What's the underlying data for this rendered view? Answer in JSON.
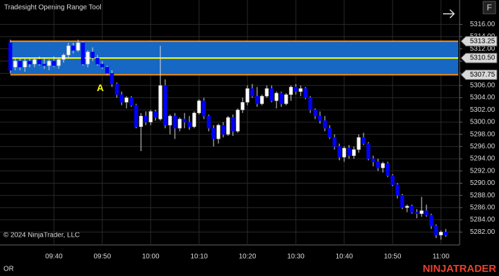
{
  "chart_data": {
    "type": "candlestick",
    "title": "Tradesight Opening Range Tool",
    "copyright": "© 2024 NinjaTrader, LLC",
    "brand": "NINJATRADER",
    "tab_label": "OR",
    "button_label": "F",
    "up_color": "#ffffff",
    "down_color": "#0000ff",
    "grid": true,
    "categories": [
      "09:31",
      "09:32",
      "09:33",
      "09:34",
      "09:35",
      "09:36",
      "09:37",
      "09:38",
      "09:39",
      "09:40",
      "09:41",
      "09:42",
      "09:43",
      "09:44",
      "09:45",
      "09:46",
      "09:47",
      "09:48",
      "09:49",
      "09:50",
      "09:51",
      "09:52",
      "09:53",
      "09:54",
      "09:55",
      "09:56",
      "09:57",
      "09:58",
      "09:59",
      "10:00",
      "10:01",
      "10:02",
      "10:03",
      "10:04",
      "10:05",
      "10:06",
      "10:07",
      "10:08",
      "10:09",
      "10:10",
      "10:11",
      "10:12",
      "10:13",
      "10:14",
      "10:15",
      "10:16",
      "10:17",
      "10:18",
      "10:19",
      "10:20",
      "10:21",
      "10:22",
      "10:23",
      "10:24",
      "10:25",
      "10:26",
      "10:27",
      "10:28",
      "10:29",
      "10:30",
      "10:31",
      "10:32",
      "10:33",
      "10:34",
      "10:35",
      "10:36",
      "10:37",
      "10:38",
      "10:39",
      "10:40",
      "10:41",
      "10:42",
      "10:43",
      "10:44",
      "10:45",
      "10:46",
      "10:47",
      "10:48",
      "10:49",
      "10:50",
      "10:51",
      "10:52",
      "10:53",
      "10:54",
      "10:55",
      "10:56",
      "10:57",
      "10:58",
      "10:59",
      "11:00",
      "11:01"
    ],
    "open": [
      5313.0,
      5309.0,
      5310.0,
      5309.0,
      5310.0,
      5309.5,
      5310.25,
      5309.5,
      5309.25,
      5310.0,
      5309.25,
      5310.25,
      5311.0,
      5312.5,
      5311.75,
      5313.0,
      5309.5,
      5311.5,
      5310.5,
      5309.5,
      5309.0,
      5308.0,
      5306.25,
      5304.5,
      5303.25,
      5304.0,
      5302.75,
      5299.25,
      5301.0,
      5300.0,
      5301.75,
      5300.5,
      5306.0,
      5299.5,
      5301.0,
      5299.0,
      5300.5,
      5300.0,
      5299.25,
      5301.5,
      5303.5,
      5301.0,
      5299.0,
      5297.25,
      5299.5,
      5298.0,
      5300.75,
      5298.5,
      5302.0,
      5303.25,
      5305.5,
      5304.25,
      5303.0,
      5304.25,
      5305.5,
      5303.5,
      5304.75,
      5303.0,
      5304.5,
      5305.75,
      5305.0,
      5305.5,
      5304.0,
      5302.0,
      5301.0,
      5300.25,
      5299.0,
      5297.5,
      5296.0,
      5294.25,
      5295.75,
      5294.5,
      5295.5,
      5297.5,
      5296.5,
      5294.0,
      5293.5,
      5292.5,
      5293.25,
      5291.25,
      5289.75,
      5288.0,
      5286.0,
      5286.25,
      5285.25,
      5285.0,
      5285.5,
      5284.75,
      5283.0,
      5281.5,
      5282.0
    ],
    "high": [
      5313.5,
      5310.5,
      5310.5,
      5310.5,
      5310.5,
      5310.5,
      5310.75,
      5310.5,
      5310.25,
      5310.75,
      5310.5,
      5311.25,
      5313.0,
      5313.0,
      5313.5,
      5313.25,
      5311.75,
      5312.25,
      5311.0,
      5310.0,
      5309.25,
      5308.5,
      5306.5,
      5305.0,
      5304.25,
      5304.25,
      5303.0,
      5301.5,
      5301.75,
      5302.0,
      5302.0,
      5312.5,
      5307.0,
      5301.25,
      5301.5,
      5300.75,
      5301.5,
      5301.0,
      5301.75,
      5303.75,
      5304.0,
      5301.25,
      5299.5,
      5299.75,
      5300.0,
      5301.0,
      5301.25,
      5302.25,
      5304.0,
      5306.0,
      5306.25,
      5305.75,
      5304.5,
      5306.0,
      5306.0,
      5305.0,
      5305.0,
      5304.75,
      5306.0,
      5306.25,
      5306.0,
      5305.75,
      5304.25,
      5302.25,
      5301.75,
      5301.0,
      5299.5,
      5298.0,
      5296.5,
      5296.0,
      5296.25,
      5296.0,
      5298.0,
      5298.25,
      5296.75,
      5294.5,
      5294.0,
      5293.5,
      5293.5,
      5291.5,
      5290.0,
      5288.25,
      5286.5,
      5286.5,
      5285.75,
      5287.75,
      5286.5,
      5285.0,
      5283.25,
      5282.25,
      5282.5
    ],
    "low": [
      5308.0,
      5308.5,
      5308.5,
      5308.25,
      5309.0,
      5309.0,
      5309.25,
      5308.75,
      5308.5,
      5309.0,
      5308.75,
      5309.75,
      5310.5,
      5311.25,
      5311.5,
      5309.25,
      5309.0,
      5310.0,
      5309.25,
      5308.75,
      5307.75,
      5305.75,
      5304.0,
      5302.75,
      5302.25,
      5302.5,
      5299.0,
      5295.25,
      5299.5,
      5299.5,
      5300.25,
      5300.25,
      5299.0,
      5298.0,
      5297.25,
      5298.5,
      5299.0,
      5298.75,
      5299.0,
      5301.25,
      5300.5,
      5298.5,
      5296.0,
      5296.5,
      5297.5,
      5297.75,
      5297.75,
      5298.25,
      5301.5,
      5302.75,
      5304.0,
      5302.5,
      5302.75,
      5304.0,
      5303.25,
      5302.25,
      5302.5,
      5302.75,
      5303.5,
      5304.5,
      5304.25,
      5303.75,
      5301.5,
      5300.5,
      5299.75,
      5298.5,
      5297.25,
      5295.5,
      5293.75,
      5293.5,
      5294.0,
      5294.0,
      5295.0,
      5296.25,
      5293.75,
      5292.75,
      5292.0,
      5291.75,
      5291.0,
      5289.5,
      5287.5,
      5285.75,
      5285.25,
      5285.0,
      5284.25,
      5284.5,
      5284.5,
      5282.5,
      5281.0,
      5280.75,
      5281.25
    ],
    "close": [
      5308.5,
      5310.0,
      5309.0,
      5310.0,
      5309.5,
      5310.25,
      5309.5,
      5309.25,
      5310.0,
      5309.25,
      5310.25,
      5311.0,
      5312.5,
      5311.75,
      5313.0,
      5309.5,
      5311.5,
      5310.5,
      5309.5,
      5309.0,
      5308.0,
      5306.25,
      5304.5,
      5303.25,
      5304.0,
      5302.75,
      5299.25,
      5301.0,
      5300.0,
      5301.75,
      5300.75,
      5306.0,
      5299.5,
      5301.0,
      5299.0,
      5300.5,
      5300.0,
      5299.25,
      5301.5,
      5303.5,
      5301.0,
      5299.0,
      5297.25,
      5299.5,
      5298.0,
      5300.75,
      5298.5,
      5302.0,
      5303.25,
      5305.5,
      5304.25,
      5303.0,
      5304.25,
      5305.5,
      5303.5,
      5304.75,
      5303.0,
      5304.5,
      5305.75,
      5305.0,
      5305.5,
      5304.0,
      5302.0,
      5301.0,
      5300.25,
      5299.0,
      5297.5,
      5296.0,
      5294.25,
      5295.75,
      5294.5,
      5295.5,
      5297.5,
      5296.5,
      5294.0,
      5293.5,
      5292.5,
      5293.25,
      5291.25,
      5289.75,
      5288.0,
      5286.0,
      5286.25,
      5285.25,
      5285.0,
      5285.5,
      5284.75,
      5283.0,
      5281.5,
      5282.0,
      5281.5
    ],
    "xticks": [
      "09:40",
      "09:50",
      "10:00",
      "10:10",
      "10:20",
      "10:30",
      "10:40",
      "10:50",
      "11:00"
    ],
    "ylim": [
      5280,
      5320
    ],
    "yticks": [
      {
        "value": 5282,
        "label": "5282.00"
      },
      {
        "value": 5284,
        "label": "5284.00"
      },
      {
        "value": 5286,
        "label": "5286.00"
      },
      {
        "value": 5288,
        "label": "5288.00"
      },
      {
        "value": 5290,
        "label": "5290.00"
      },
      {
        "value": 5292,
        "label": "5292.00"
      },
      {
        "value": 5294,
        "label": "5294.00"
      },
      {
        "value": 5296,
        "label": "5296.00"
      },
      {
        "value": 5298,
        "label": "5298.00"
      },
      {
        "value": 5300,
        "label": "5300.00"
      },
      {
        "value": 5302,
        "label": "5302.00"
      },
      {
        "value": 5304,
        "label": "5304.00"
      },
      {
        "value": 5306,
        "label": "5306.00"
      },
      {
        "value": 5308,
        "label": "5308.00"
      },
      {
        "value": 5310,
        "label": "5310.00"
      },
      {
        "value": 5312,
        "label": "5312.00"
      },
      {
        "value": 5314,
        "label": "5314.00"
      },
      {
        "value": 5316,
        "label": "5316.00"
      }
    ],
    "opening_range": {
      "high": 5313.25,
      "mid": {
        "value": 5310.5,
        "label": "5310.50"
      },
      "low": 5307.75,
      "fill": "#1668c4",
      "edge_color": "#ff8c00",
      "mid_color": "#ffff00"
    },
    "annotation": {
      "text": "A",
      "x": "09:50",
      "y": 5305.5,
      "color": "#ffff00"
    }
  }
}
